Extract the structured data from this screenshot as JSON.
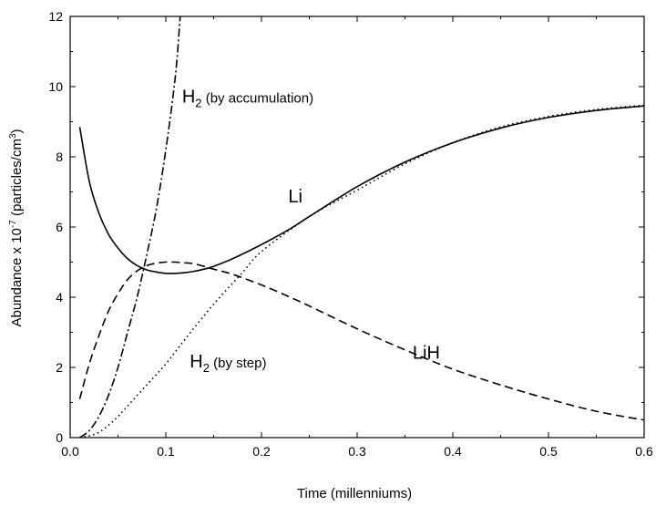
{
  "chart_data": {
    "type": "line",
    "title": "",
    "xlabel": "Time (millenniums)",
    "ylabel_parts": {
      "main": "Abundance x 10",
      "exp": "-7",
      "unit": " (particles/cm",
      "unit_exp": "3",
      "close": ")"
    },
    "xlim": [
      0.0,
      0.6
    ],
    "ylim": [
      0,
      12
    ],
    "x_ticks": [
      0.0,
      0.1,
      0.2,
      0.3,
      0.4,
      0.5,
      0.6
    ],
    "x_tick_labels": [
      "0.0",
      "0.1",
      "0.2",
      "0.3",
      "0.4",
      "0.5",
      "0.6"
    ],
    "y_ticks": [
      0,
      2,
      4,
      6,
      8,
      10,
      12
    ],
    "y_tick_labels": [
      "0",
      "2",
      "4",
      "6",
      "8",
      "10",
      "12"
    ],
    "grid": false,
    "series": [
      {
        "name": "Li",
        "style": "solid",
        "x": [
          0.01,
          0.02,
          0.03,
          0.04,
          0.05,
          0.06,
          0.07,
          0.08,
          0.09,
          0.1,
          0.11,
          0.12,
          0.13,
          0.14,
          0.15,
          0.17,
          0.2,
          0.23,
          0.25,
          0.3,
          0.35,
          0.4,
          0.45,
          0.5,
          0.55,
          0.6
        ],
        "values": [
          8.85,
          7.3,
          6.4,
          5.8,
          5.4,
          5.1,
          4.9,
          4.78,
          4.72,
          4.68,
          4.68,
          4.7,
          4.74,
          4.8,
          4.88,
          5.1,
          5.5,
          5.95,
          6.3,
          7.15,
          7.85,
          8.4,
          8.82,
          9.12,
          9.32,
          9.45
        ]
      },
      {
        "name": "LiH",
        "style": "dashed",
        "x": [
          0.01,
          0.02,
          0.03,
          0.04,
          0.05,
          0.06,
          0.07,
          0.08,
          0.09,
          0.1,
          0.11,
          0.12,
          0.13,
          0.15,
          0.17,
          0.2,
          0.23,
          0.25,
          0.3,
          0.35,
          0.4,
          0.45,
          0.5,
          0.55,
          0.6
        ],
        "values": [
          1.1,
          2.1,
          2.9,
          3.6,
          4.1,
          4.5,
          4.75,
          4.9,
          4.97,
          5.0,
          5.0,
          4.98,
          4.95,
          4.8,
          4.65,
          4.35,
          4.0,
          3.75,
          3.1,
          2.5,
          1.95,
          1.5,
          1.1,
          0.75,
          0.5
        ]
      },
      {
        "name": "H2 (by step)",
        "style": "dotted",
        "x": [
          0.01,
          0.02,
          0.03,
          0.04,
          0.05,
          0.06,
          0.08,
          0.1,
          0.12,
          0.15,
          0.18,
          0.2,
          0.25,
          0.3,
          0.35,
          0.4,
          0.45,
          0.5,
          0.55,
          0.6
        ],
        "values": [
          0.0,
          0.05,
          0.15,
          0.35,
          0.6,
          0.9,
          1.5,
          2.1,
          2.8,
          3.8,
          4.7,
          5.3,
          6.3,
          7.05,
          7.8,
          8.4,
          8.85,
          9.15,
          9.35,
          9.47
        ]
      },
      {
        "name": "H2 (by accumulation)",
        "style": "dashdot",
        "x": [
          0.01,
          0.02,
          0.03,
          0.04,
          0.05,
          0.06,
          0.07,
          0.08,
          0.09,
          0.1,
          0.11,
          0.115
        ],
        "values": [
          0.0,
          0.2,
          0.6,
          1.2,
          2.0,
          3.0,
          4.0,
          5.2,
          6.5,
          8.2,
          10.3,
          12.0
        ]
      }
    ],
    "annotations": [
      {
        "id": "h2_acc",
        "main": "H",
        "sub": "2",
        "tail": " (by accumulation)",
        "x": 0.117,
        "y": 9.55
      },
      {
        "id": "li",
        "main": "Li",
        "x": 0.228,
        "y": 6.7
      },
      {
        "id": "h2_step",
        "main": "H",
        "sub": "2",
        "tail": " (by step)",
        "x": 0.125,
        "y": 2.0
      },
      {
        "id": "lih",
        "main": "LiH",
        "x": 0.358,
        "y": 2.25
      }
    ]
  }
}
